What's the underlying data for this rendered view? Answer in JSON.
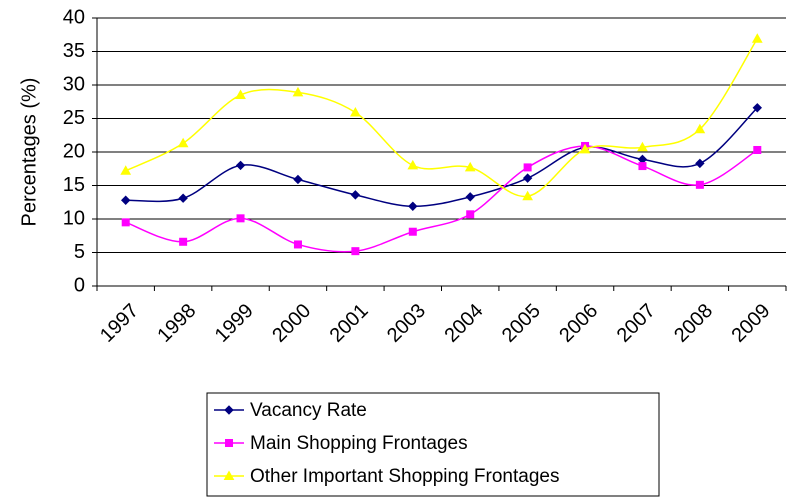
{
  "chart_data": {
    "type": "line",
    "y_label": "Percentages (%)",
    "categories": [
      "1997",
      "1998",
      "1999",
      "2000",
      "2001",
      "2003",
      "2004",
      "2005",
      "2006",
      "2007",
      "2008",
      "2009"
    ],
    "series": [
      {
        "name": "Vacancy Rate",
        "color": "#000080",
        "marker": "diamond",
        "values": [
          12.8,
          13.1,
          18.0,
          15.9,
          13.6,
          11.9,
          13.3,
          16.1,
          20.7,
          18.9,
          18.3,
          26.6
        ]
      },
      {
        "name": "Main Shopping Frontages",
        "color": "#ff00ff",
        "marker": "square",
        "values": [
          9.5,
          6.6,
          10.1,
          6.2,
          5.2,
          8.1,
          10.7,
          17.7,
          20.9,
          17.9,
          15.1,
          20.3
        ]
      },
      {
        "name": "Other Important Shopping Frontages",
        "color": "#ffff00",
        "marker": "triangle",
        "values": [
          17.2,
          21.3,
          28.5,
          28.9,
          25.9,
          18.0,
          17.7,
          13.4,
          20.4,
          20.7,
          23.4,
          36.9
        ]
      }
    ],
    "ylim": [
      0,
      40
    ],
    "yticks": [
      0,
      5,
      10,
      15,
      20,
      25,
      30,
      35,
      40
    ],
    "grid": true,
    "legend": "bottom"
  }
}
